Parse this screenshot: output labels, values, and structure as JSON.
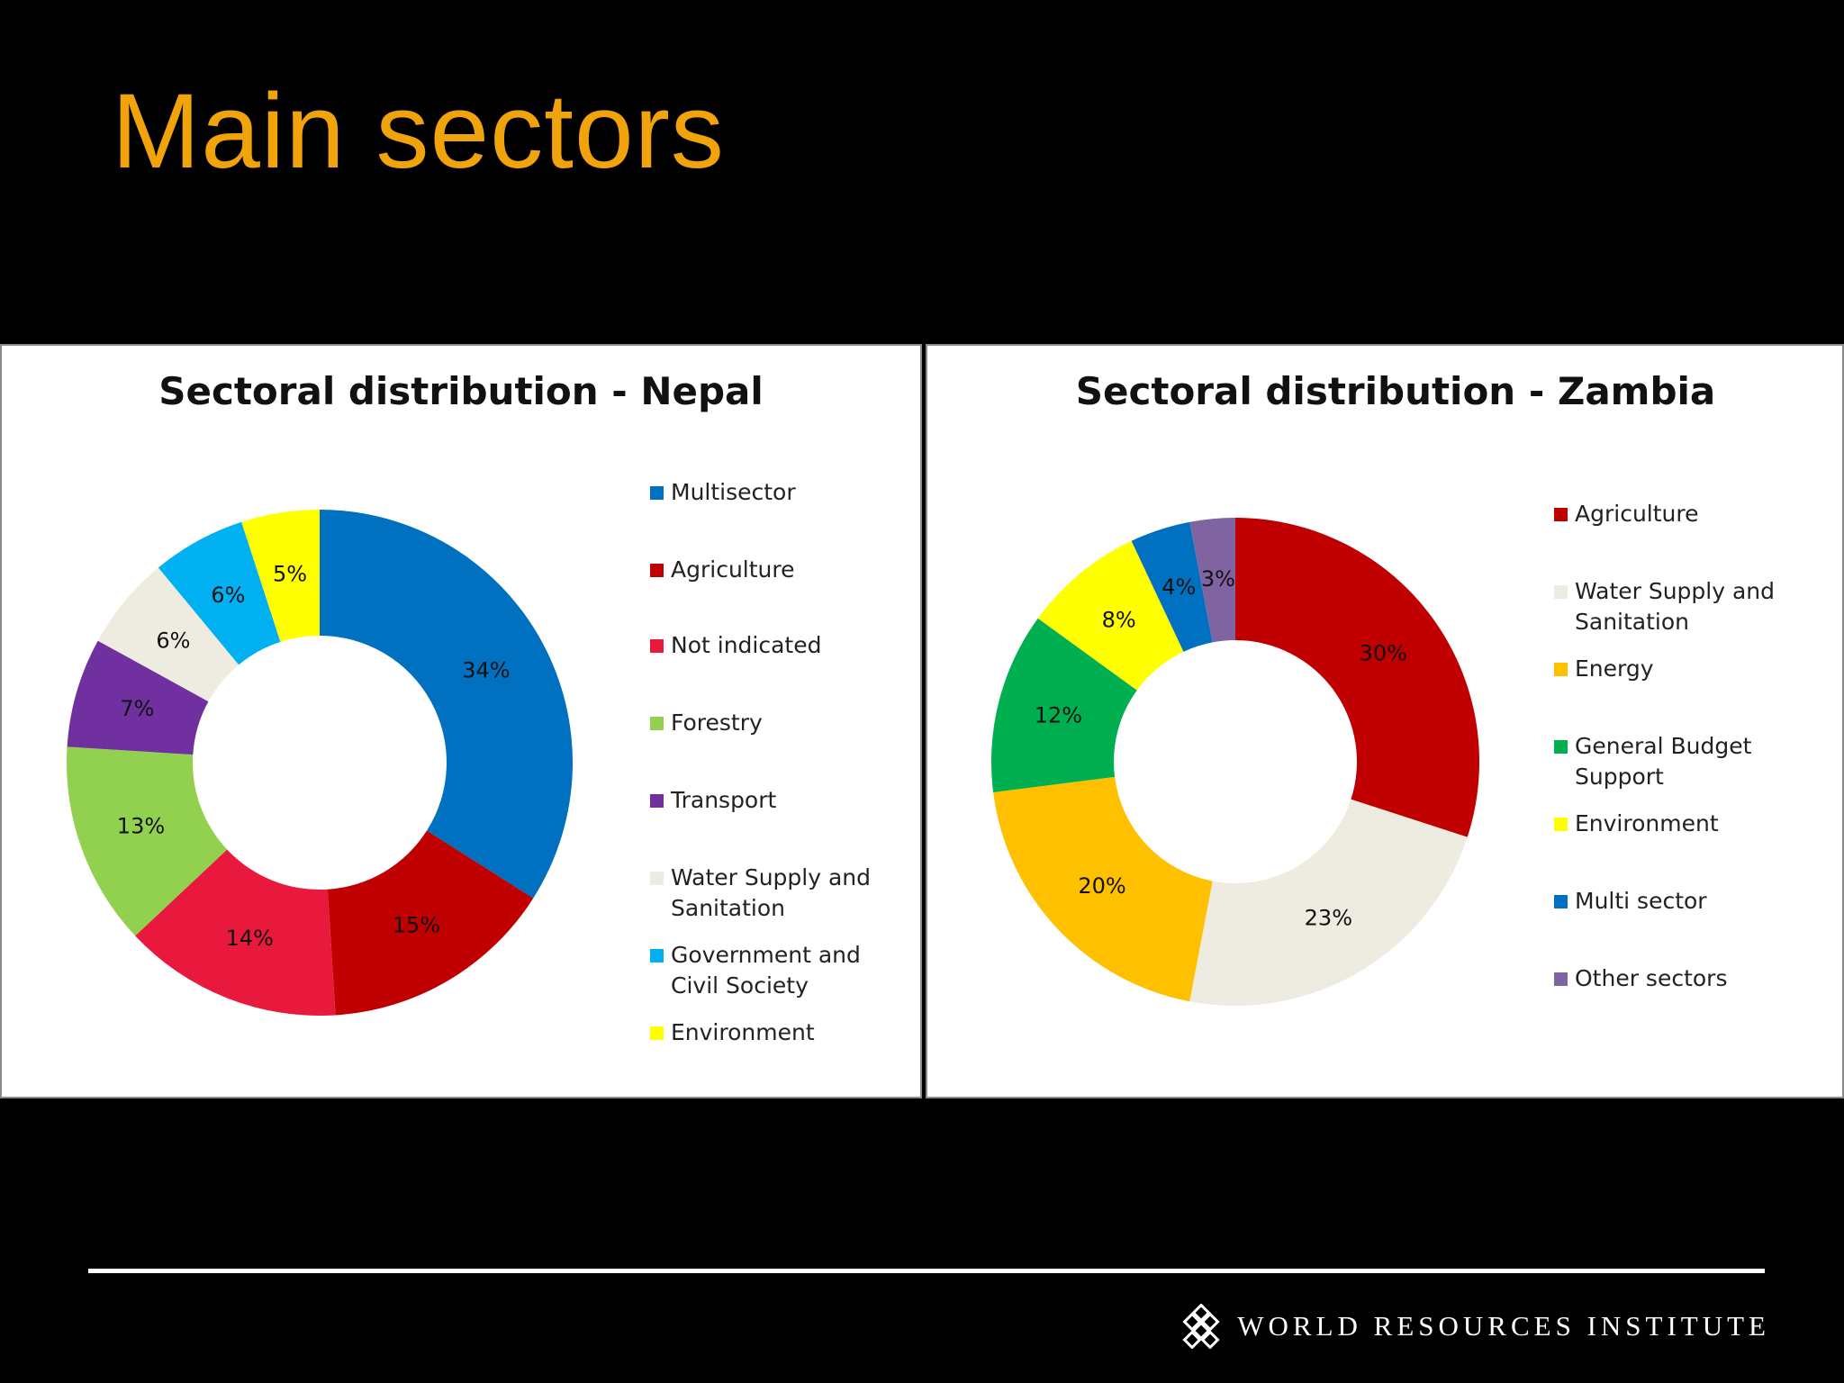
{
  "slide": {
    "title": "Main sectors",
    "footer_org": "WORLD RESOURCES INSTITUTE"
  },
  "chart_data": [
    {
      "type": "pie",
      "title": "Sectoral distribution - Nepal",
      "categories": [
        "Multisector",
        "Agriculture",
        "Not indicated",
        "Forestry",
        "Transport",
        "Water Supply and Sanitation",
        "Government and Civil Society",
        "Environment"
      ],
      "values": [
        34,
        15,
        14,
        13,
        7,
        6,
        6,
        5
      ],
      "labels": [
        "34%",
        "15%",
        "14%",
        "13%",
        "7%",
        "6%",
        "6%",
        "5%"
      ],
      "colors": [
        "#0070C0",
        "#C00000",
        "#E8193C",
        "#92D050",
        "#7030A0",
        "#EEECE1",
        "#00B0F0",
        "#FFFF00"
      ],
      "legend": "right"
    },
    {
      "type": "pie",
      "title": "Sectoral distribution - Zambia",
      "categories": [
        "Agriculture",
        "Water Supply and Sanitation",
        "Energy",
        "General Budget Support",
        "Environment",
        "Multi sector",
        "Other sectors"
      ],
      "values": [
        30,
        23,
        20,
        12,
        8,
        4,
        3
      ],
      "labels": [
        "30%",
        "23%",
        "20%",
        "12%",
        "8%",
        "4%",
        "3%"
      ],
      "colors": [
        "#C00000",
        "#EEECE1",
        "#FFC000",
        "#00B050",
        "#FFFF00",
        "#0070C0",
        "#8064A2"
      ],
      "legend": "right"
    }
  ]
}
